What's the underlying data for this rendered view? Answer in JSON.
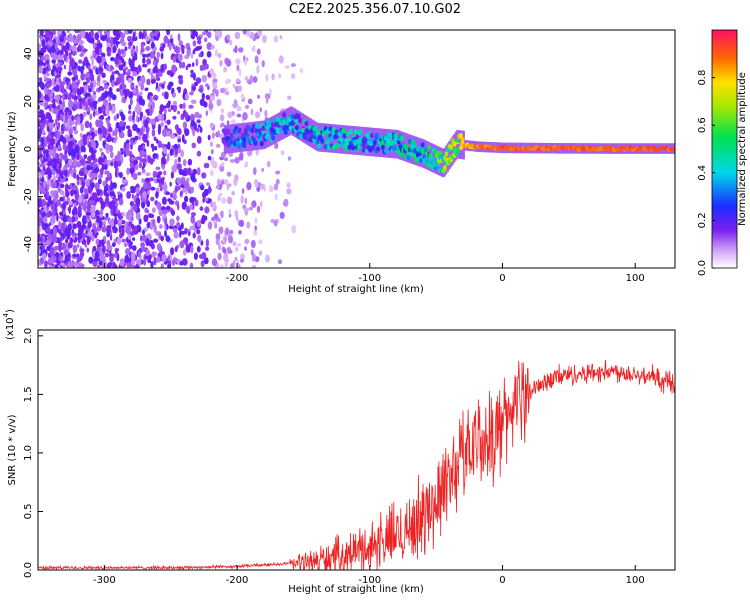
{
  "title": "C2E2.2025.356.07.10.G02",
  "chart_data": [
    {
      "type": "heatmap",
      "xlabel": "Height of straight line (km)",
      "ylabel": "Frequency (Hz)",
      "xlim": [
        -350,
        130
      ],
      "ylim": [
        -50,
        50
      ],
      "xticks": [
        -300,
        -200,
        -100,
        0,
        100
      ],
      "xtick_labels": [
        "-300",
        "-200",
        "-100",
        "0",
        "100"
      ],
      "yticks": [
        -40,
        -20,
        0,
        20,
        40
      ],
      "ytick_labels": [
        "-40",
        "-20",
        "0",
        "20",
        "40"
      ],
      "colorbar": {
        "label": "Normalized spectral amplitude",
        "range": [
          0,
          1
        ],
        "ticks": [
          0.0,
          0.2,
          0.4,
          0.6,
          0.8
        ],
        "tick_labels": [
          "0.0",
          "0.2",
          "0.4",
          "0.6",
          "0.8"
        ]
      },
      "ridge": {
        "x": [
          -210,
          -180,
          -160,
          -140,
          -120,
          -100,
          -80,
          -60,
          -45,
          -35,
          -20,
          0,
          40,
          80,
          130
        ],
        "frequency": [
          4,
          6,
          12,
          5,
          4,
          3,
          2,
          -2,
          -6,
          2,
          1,
          0.5,
          0.3,
          0.2,
          0.2
        ],
        "amplitude": [
          0.35,
          0.45,
          0.5,
          0.5,
          0.55,
          0.5,
          0.55,
          0.6,
          0.7,
          0.85,
          0.9,
          0.95,
          0.95,
          0.95,
          0.95
        ]
      }
    },
    {
      "type": "line",
      "xlabel": "Height of straight line (km)",
      "ylabel": "SNR (10 * v/v)",
      "scale_label": "(x10",
      "scale_exp": "4",
      "scale_close": ")",
      "xlim": [
        -350,
        130
      ],
      "ylim": [
        0,
        2.05
      ],
      "xticks": [
        -300,
        -200,
        -100,
        0,
        100
      ],
      "xtick_labels": [
        "-300",
        "-200",
        "-100",
        "0",
        "100"
      ],
      "yticks": [
        0.0,
        0.5,
        1.0,
        1.5,
        2.0
      ],
      "ytick_labels": [
        "0.0",
        "0.5",
        "1.0",
        "1.5",
        "2.0"
      ],
      "series": [
        {
          "name": "SNR",
          "color": "#ee2222",
          "x": [
            -350,
            -300,
            -250,
            -200,
            -170,
            -150,
            -120,
            -100,
            -80,
            -60,
            -50,
            -40,
            -30,
            -20,
            -10,
            0,
            10,
            20,
            30,
            40,
            60,
            80,
            100,
            120,
            130
          ],
          "y": [
            0.02,
            0.02,
            0.02,
            0.03,
            0.05,
            0.06,
            0.12,
            0.2,
            0.3,
            0.45,
            0.6,
            0.8,
            1.0,
            1.15,
            1.1,
            1.25,
            1.45,
            1.5,
            1.6,
            1.65,
            1.68,
            1.7,
            1.68,
            1.62,
            1.6
          ]
        }
      ]
    }
  ]
}
